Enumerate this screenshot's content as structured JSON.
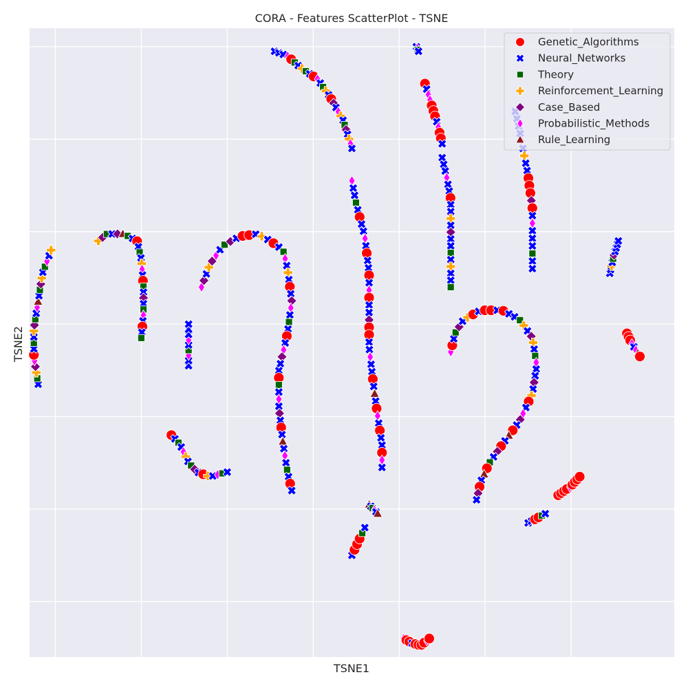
{
  "chart_data": {
    "type": "scatter",
    "title": "CORA - Features ScatterPlot - TSNE",
    "xlabel": "TSNE1",
    "ylabel": "TSNE2",
    "xlim": [
      -66,
      84
    ],
    "ylim": [
      -72,
      64
    ],
    "grid": true,
    "background": "#EAEAF2",
    "gridColor": "#FFFFFF",
    "x_ticks": [
      -60,
      -40,
      -20,
      0,
      20,
      40,
      60
    ],
    "y_ticks": [
      -60,
      -40,
      -20,
      0,
      20,
      40,
      60
    ],
    "show_tick_labels": false,
    "legend": {
      "position": "top-right",
      "items": [
        {
          "name": "Genetic_Algorithms",
          "color": "#FF0000",
          "marker": "circle"
        },
        {
          "name": "Neural_Networks",
          "color": "#0000FF",
          "marker": "x"
        },
        {
          "name": "Theory",
          "color": "#006400",
          "marker": "square"
        },
        {
          "name": "Reinforcement_Learning",
          "color": "#FFA500",
          "marker": "plus"
        },
        {
          "name": "Case_Based",
          "color": "#800080",
          "marker": "diamond"
        },
        {
          "name": "Probabilistic_Methods",
          "color": "#FF00FF",
          "marker": "thin-diamond"
        },
        {
          "name": "Rule_Learning",
          "color": "#8B1A1A",
          "marker": "triangle"
        }
      ]
    },
    "clusters": [
      {
        "shape": "arc",
        "points": [
          [
            -64,
            -13
          ],
          [
            -65,
            -7
          ],
          [
            -65,
            -1
          ],
          [
            -64,
            5
          ],
          [
            -63,
            11
          ],
          [
            -61,
            16
          ]
        ],
        "pattern": [
          1,
          2,
          3,
          4,
          5,
          0,
          1,
          2,
          1,
          3,
          4,
          2,
          1,
          5,
          6,
          1,
          2,
          4,
          3,
          1,
          2,
          5,
          1,
          3
        ],
        "count": 24
      },
      {
        "shape": "arc",
        "points": [
          [
            -50,
            18
          ],
          [
            -48,
            19.5
          ],
          [
            -44,
            19.5
          ],
          [
            -41,
            18
          ],
          [
            -40,
            14
          ],
          [
            -39.5,
            8
          ],
          [
            -39.5,
            2
          ],
          [
            -40,
            -3
          ]
        ],
        "pattern": [
          3,
          4,
          2,
          1,
          4,
          6,
          2,
          1,
          0,
          1,
          2,
          1,
          3,
          5,
          1,
          0,
          2,
          1,
          4,
          1,
          2,
          5,
          1,
          0,
          1,
          2
        ],
        "count": 26
      },
      {
        "shape": "arc",
        "points": [
          [
            -33,
            -24
          ],
          [
            -31,
            -26
          ],
          [
            -29,
            -30
          ],
          [
            -27,
            -32
          ],
          [
            -24,
            -33
          ],
          [
            -20,
            -32
          ]
        ],
        "pattern": [
          0,
          1,
          2,
          1,
          5,
          3,
          1,
          2,
          4,
          1,
          0,
          3,
          1,
          5,
          2,
          1
        ],
        "count": 16
      },
      {
        "shape": "arc",
        "points": [
          [
            -29,
            -9
          ],
          [
            -29,
            -6
          ],
          [
            -29,
            -3
          ],
          [
            -29,
            0
          ]
        ],
        "pattern": [
          1,
          1,
          5,
          2,
          1,
          5,
          1
        ],
        "count": 9
      },
      {
        "shape": "arc",
        "points": [
          [
            -26,
            8
          ],
          [
            -24,
            13
          ],
          [
            -21,
            17
          ],
          [
            -17,
            19
          ],
          [
            -13,
            19.5
          ],
          [
            -10,
            18
          ],
          [
            -7,
            16
          ],
          [
            -6,
            12
          ],
          [
            -5,
            5
          ],
          [
            -6,
            -2
          ],
          [
            -8,
            -10
          ],
          [
            -8,
            -18
          ],
          [
            -7,
            -26
          ],
          [
            -6,
            -32
          ],
          [
            -5,
            -36
          ]
        ],
        "pattern": [
          5,
          4,
          1,
          3,
          4,
          5,
          1,
          2,
          4,
          1,
          0,
          0,
          1,
          3,
          1,
          0,
          1,
          2,
          5,
          1,
          3,
          1,
          0,
          1,
          4,
          5,
          1,
          2,
          1,
          0,
          1,
          5,
          4,
          1,
          1,
          0,
          2,
          1,
          5,
          1,
          4,
          1,
          0,
          1,
          6,
          1,
          5,
          1,
          2,
          1,
          0,
          1
        ],
        "count": 52
      },
      {
        "shape": "arc",
        "points": [
          [
            -9,
            59
          ],
          [
            -6,
            58
          ],
          [
            -3,
            55.5
          ],
          [
            1,
            53
          ],
          [
            4,
            49
          ],
          [
            7,
            44
          ],
          [
            9,
            38
          ]
        ],
        "pattern": [
          1,
          1,
          1,
          5,
          0,
          2,
          1,
          3,
          2,
          1,
          0,
          5,
          1,
          2,
          3,
          1,
          0,
          4,
          1,
          5,
          3,
          1,
          2,
          4,
          1,
          3,
          5,
          1
        ],
        "count": 28
      },
      {
        "shape": "arc",
        "points": [
          [
            9,
            31
          ],
          [
            10,
            26
          ],
          [
            12,
            19
          ],
          [
            13,
            11
          ],
          [
            13,
            3
          ],
          [
            13,
            -5
          ],
          [
            14,
            -13
          ],
          [
            15,
            -20
          ],
          [
            16,
            -26
          ],
          [
            16,
            -31
          ]
        ],
        "pattern": [
          5,
          1,
          1,
          2,
          1,
          0,
          1,
          1,
          5,
          1,
          0,
          1,
          1,
          0,
          1,
          5,
          0,
          1,
          1,
          4,
          0,
          0,
          1,
          1,
          5,
          1,
          1,
          0,
          1,
          6,
          1,
          0,
          5,
          1,
          0,
          1,
          1,
          0,
          5,
          1
        ],
        "count": 40
      },
      {
        "shape": "arc",
        "points": [
          [
            13,
            -39
          ],
          [
            14,
            -40
          ],
          [
            15,
            -41
          ]
        ],
        "pattern": [
          6,
          1,
          2,
          5,
          1
        ],
        "count": 6
      },
      {
        "shape": "arc",
        "points": [
          [
            9,
            -50
          ],
          [
            10,
            -48
          ],
          [
            11,
            -46
          ],
          [
            12,
            -44
          ]
        ],
        "pattern": [
          1,
          0,
          0,
          0,
          2
        ],
        "count": 6
      },
      {
        "shape": "arc",
        "points": [
          [
            21,
            -68
          ],
          [
            23,
            -69
          ],
          [
            25,
            -69.5
          ],
          [
            27,
            -68
          ]
        ],
        "pattern": [
          5,
          0,
          0,
          1,
          0,
          0,
          0,
          0
        ],
        "count": 10
      },
      {
        "shape": "arc",
        "points": [
          [
            24,
            60
          ],
          [
            24.5,
            59
          ]
        ],
        "pattern": [
          1,
          5,
          2,
          1
        ],
        "count": 4
      },
      {
        "shape": "arc",
        "points": [
          [
            26,
            52
          ],
          [
            27,
            49
          ],
          [
            28,
            46
          ],
          [
            29,
            43
          ],
          [
            30,
            39
          ]
        ],
        "pattern": [
          0,
          1,
          5,
          5,
          0,
          0,
          0,
          1,
          5,
          0
        ],
        "count": 12
      },
      {
        "shape": "arc",
        "points": [
          [
            30,
            36
          ],
          [
            31,
            32
          ],
          [
            32,
            27
          ],
          [
            32,
            22
          ],
          [
            32,
            17
          ],
          [
            32,
            12
          ],
          [
            32,
            8
          ]
        ],
        "pattern": [
          1,
          1,
          1,
          5,
          1,
          1,
          0,
          1,
          1,
          3,
          1,
          4,
          1,
          1,
          2,
          1,
          3,
          1,
          1,
          2
        ],
        "count": 20
      },
      {
        "shape": "arc",
        "points": [
          [
            47,
            46
          ],
          [
            48,
            42
          ],
          [
            49,
            37
          ],
          [
            50,
            32
          ],
          [
            51,
            25
          ],
          [
            51,
            20
          ],
          [
            51,
            15
          ],
          [
            51,
            12
          ]
        ],
        "pattern": [
          1,
          1,
          1,
          1,
          5,
          1,
          3,
          1,
          1,
          0,
          0,
          0,
          4,
          0,
          1,
          5,
          1,
          1,
          1,
          2
        ],
        "count": 22
      },
      {
        "shape": "arc",
        "points": [
          [
            32,
            -6
          ],
          [
            33,
            -2
          ],
          [
            35,
            1
          ],
          [
            39,
            3
          ],
          [
            44,
            3
          ],
          [
            48,
            1
          ],
          [
            51,
            -3
          ],
          [
            52,
            -9
          ],
          [
            51,
            -15
          ],
          [
            48,
            -21
          ],
          [
            44,
            -26
          ],
          [
            41,
            -30
          ],
          [
            39,
            -34
          ],
          [
            38,
            -38
          ]
        ],
        "pattern": [
          5,
          0,
          1,
          2,
          4,
          1,
          3,
          0,
          1,
          0,
          0,
          1,
          0,
          1,
          1,
          2,
          3,
          1,
          4,
          3,
          1,
          2,
          5,
          1,
          1,
          4,
          1,
          3,
          0,
          1,
          5,
          4,
          1,
          0,
          6,
          1,
          0,
          4,
          1,
          2,
          0,
          6,
          1,
          0,
          4,
          1
        ],
        "count": 46
      },
      {
        "shape": "arc",
        "points": [
          [
            50,
            -43
          ],
          [
            52,
            -42
          ],
          [
            54,
            -41
          ]
        ],
        "pattern": [
          1,
          1,
          0,
          0,
          2,
          1
        ],
        "count": 6
      },
      {
        "shape": "arc",
        "points": [
          [
            57,
            -37
          ],
          [
            60,
            -35
          ],
          [
            62,
            -33
          ]
        ],
        "pattern": [
          0,
          0,
          0,
          0,
          5,
          0,
          0,
          0
        ],
        "count": 9
      },
      {
        "shape": "arc",
        "points": [
          [
            69,
            11
          ],
          [
            70,
            15
          ],
          [
            71,
            18
          ]
        ],
        "pattern": [
          1,
          1,
          3,
          1,
          2,
          4,
          1,
          1
        ],
        "count": 10
      },
      {
        "shape": "arc",
        "points": [
          [
            73,
            -2
          ],
          [
            74,
            -4
          ],
          [
            76,
            -7
          ]
        ],
        "pattern": [
          0,
          0,
          0,
          5,
          1,
          5,
          6
        ],
        "count": 8
      }
    ]
  }
}
